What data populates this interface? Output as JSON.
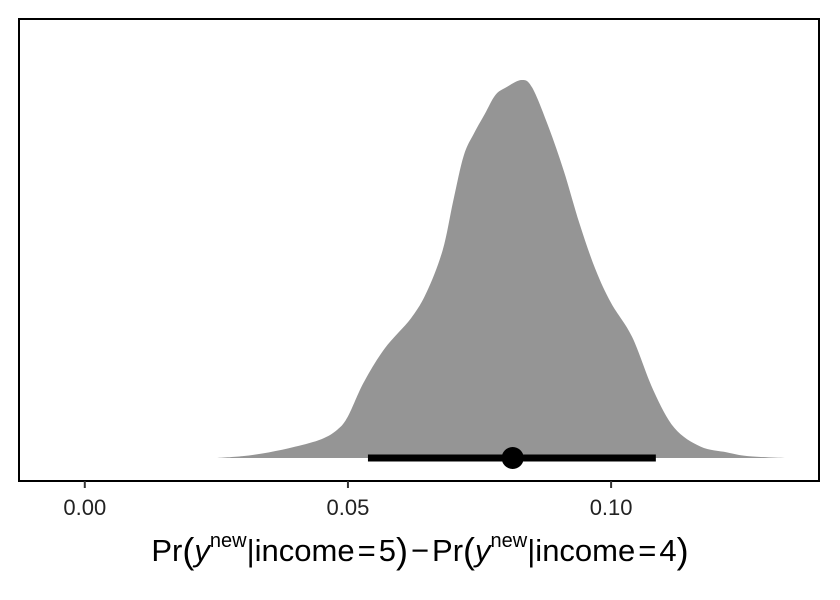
{
  "chart_data": {
    "type": "area",
    "xlabel": {
      "pr1": "Pr",
      "y1": "y",
      "sup1": "new",
      "cond1": "|income",
      "eq1": "=",
      "val1": "5",
      "minus": "−",
      "pr2": "Pr",
      "y2": "y",
      "sup2": "new",
      "cond2": "|income",
      "eq2": "=",
      "val2": "4"
    },
    "ylabel": "",
    "xlim": [
      -0.0125,
      0.1395
    ],
    "x_ticks": [
      "0.00",
      "0.05",
      "0.10"
    ],
    "x_tick_values": [
      0.0,
      0.05,
      0.1
    ],
    "grid": false,
    "density": {
      "color": "#959595",
      "points": [
        [
          0.025,
          0.0
        ],
        [
          0.03,
          0.005
        ],
        [
          0.035,
          0.015
        ],
        [
          0.04,
          0.03
        ],
        [
          0.045,
          0.05
        ],
        [
          0.048,
          0.075
        ],
        [
          0.05,
          0.11
        ],
        [
          0.053,
          0.2
        ],
        [
          0.057,
          0.29
        ],
        [
          0.062,
          0.37
        ],
        [
          0.065,
          0.44
        ],
        [
          0.068,
          0.55
        ],
        [
          0.07,
          0.68
        ],
        [
          0.072,
          0.8
        ],
        [
          0.074,
          0.86
        ],
        [
          0.076,
          0.91
        ],
        [
          0.078,
          0.96
        ],
        [
          0.08,
          0.98
        ],
        [
          0.083,
          1.0
        ],
        [
          0.085,
          0.98
        ],
        [
          0.088,
          0.88
        ],
        [
          0.091,
          0.76
        ],
        [
          0.094,
          0.62
        ],
        [
          0.097,
          0.5
        ],
        [
          0.1,
          0.41
        ],
        [
          0.104,
          0.32
        ],
        [
          0.108,
          0.18
        ],
        [
          0.112,
          0.08
        ],
        [
          0.117,
          0.03
        ],
        [
          0.122,
          0.015
        ],
        [
          0.126,
          0.005
        ],
        [
          0.133,
          0.0
        ]
      ]
    },
    "point_estimate": 0.0813,
    "interval": [
      0.0538,
      0.1085
    ]
  }
}
